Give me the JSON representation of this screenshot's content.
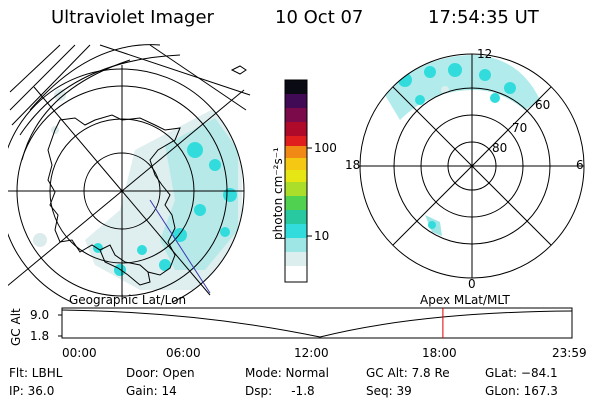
{
  "header": {
    "title": "Ultraviolet Imager",
    "date": "10 Oct 07",
    "time": "17:54:35 UT"
  },
  "colorbar": {
    "unit": "photon cm⁻²s⁻¹",
    "ticks": [
      "100",
      "10"
    ],
    "colors": [
      "#0a0a14",
      "#400a55",
      "#7a0a4a",
      "#b00a2a",
      "#e01e1e",
      "#f08a14",
      "#f5c814",
      "#e6e614",
      "#aade2a",
      "#50d250",
      "#28c8a0",
      "#32dcdc",
      "#9ee6e6",
      "#dceeee",
      "#ffffff"
    ]
  },
  "geo_map": {
    "label": "Geographic Lat/Lon"
  },
  "apex_map": {
    "label": "Apex  MLat/MLT",
    "mlt_labels": [
      "12",
      "18",
      "6",
      "0"
    ],
    "lat_labels": [
      "60",
      "70",
      "80"
    ]
  },
  "timeline": {
    "ylabel": "GC Alt",
    "y_ticks": [
      "9.0",
      "1.8"
    ],
    "x_ticks": [
      "00:00",
      "06:00",
      "12:00",
      "18:00",
      "23:59"
    ],
    "current_time_hours": 17.91,
    "marker_color": "#e00000"
  },
  "status": {
    "filter": "Flt: LBHL",
    "ip": "IP: 36.0",
    "door": "Door: Open",
    "gain": "Gain: 14",
    "mode": "Mode: Normal",
    "dsp": "Dsp:     -1.8",
    "gc_alt": "GC Alt: 7.8 Re",
    "seq": "Seq: 39",
    "glat": "GLat: −84.1",
    "glon": "GLon: 167.3"
  }
}
